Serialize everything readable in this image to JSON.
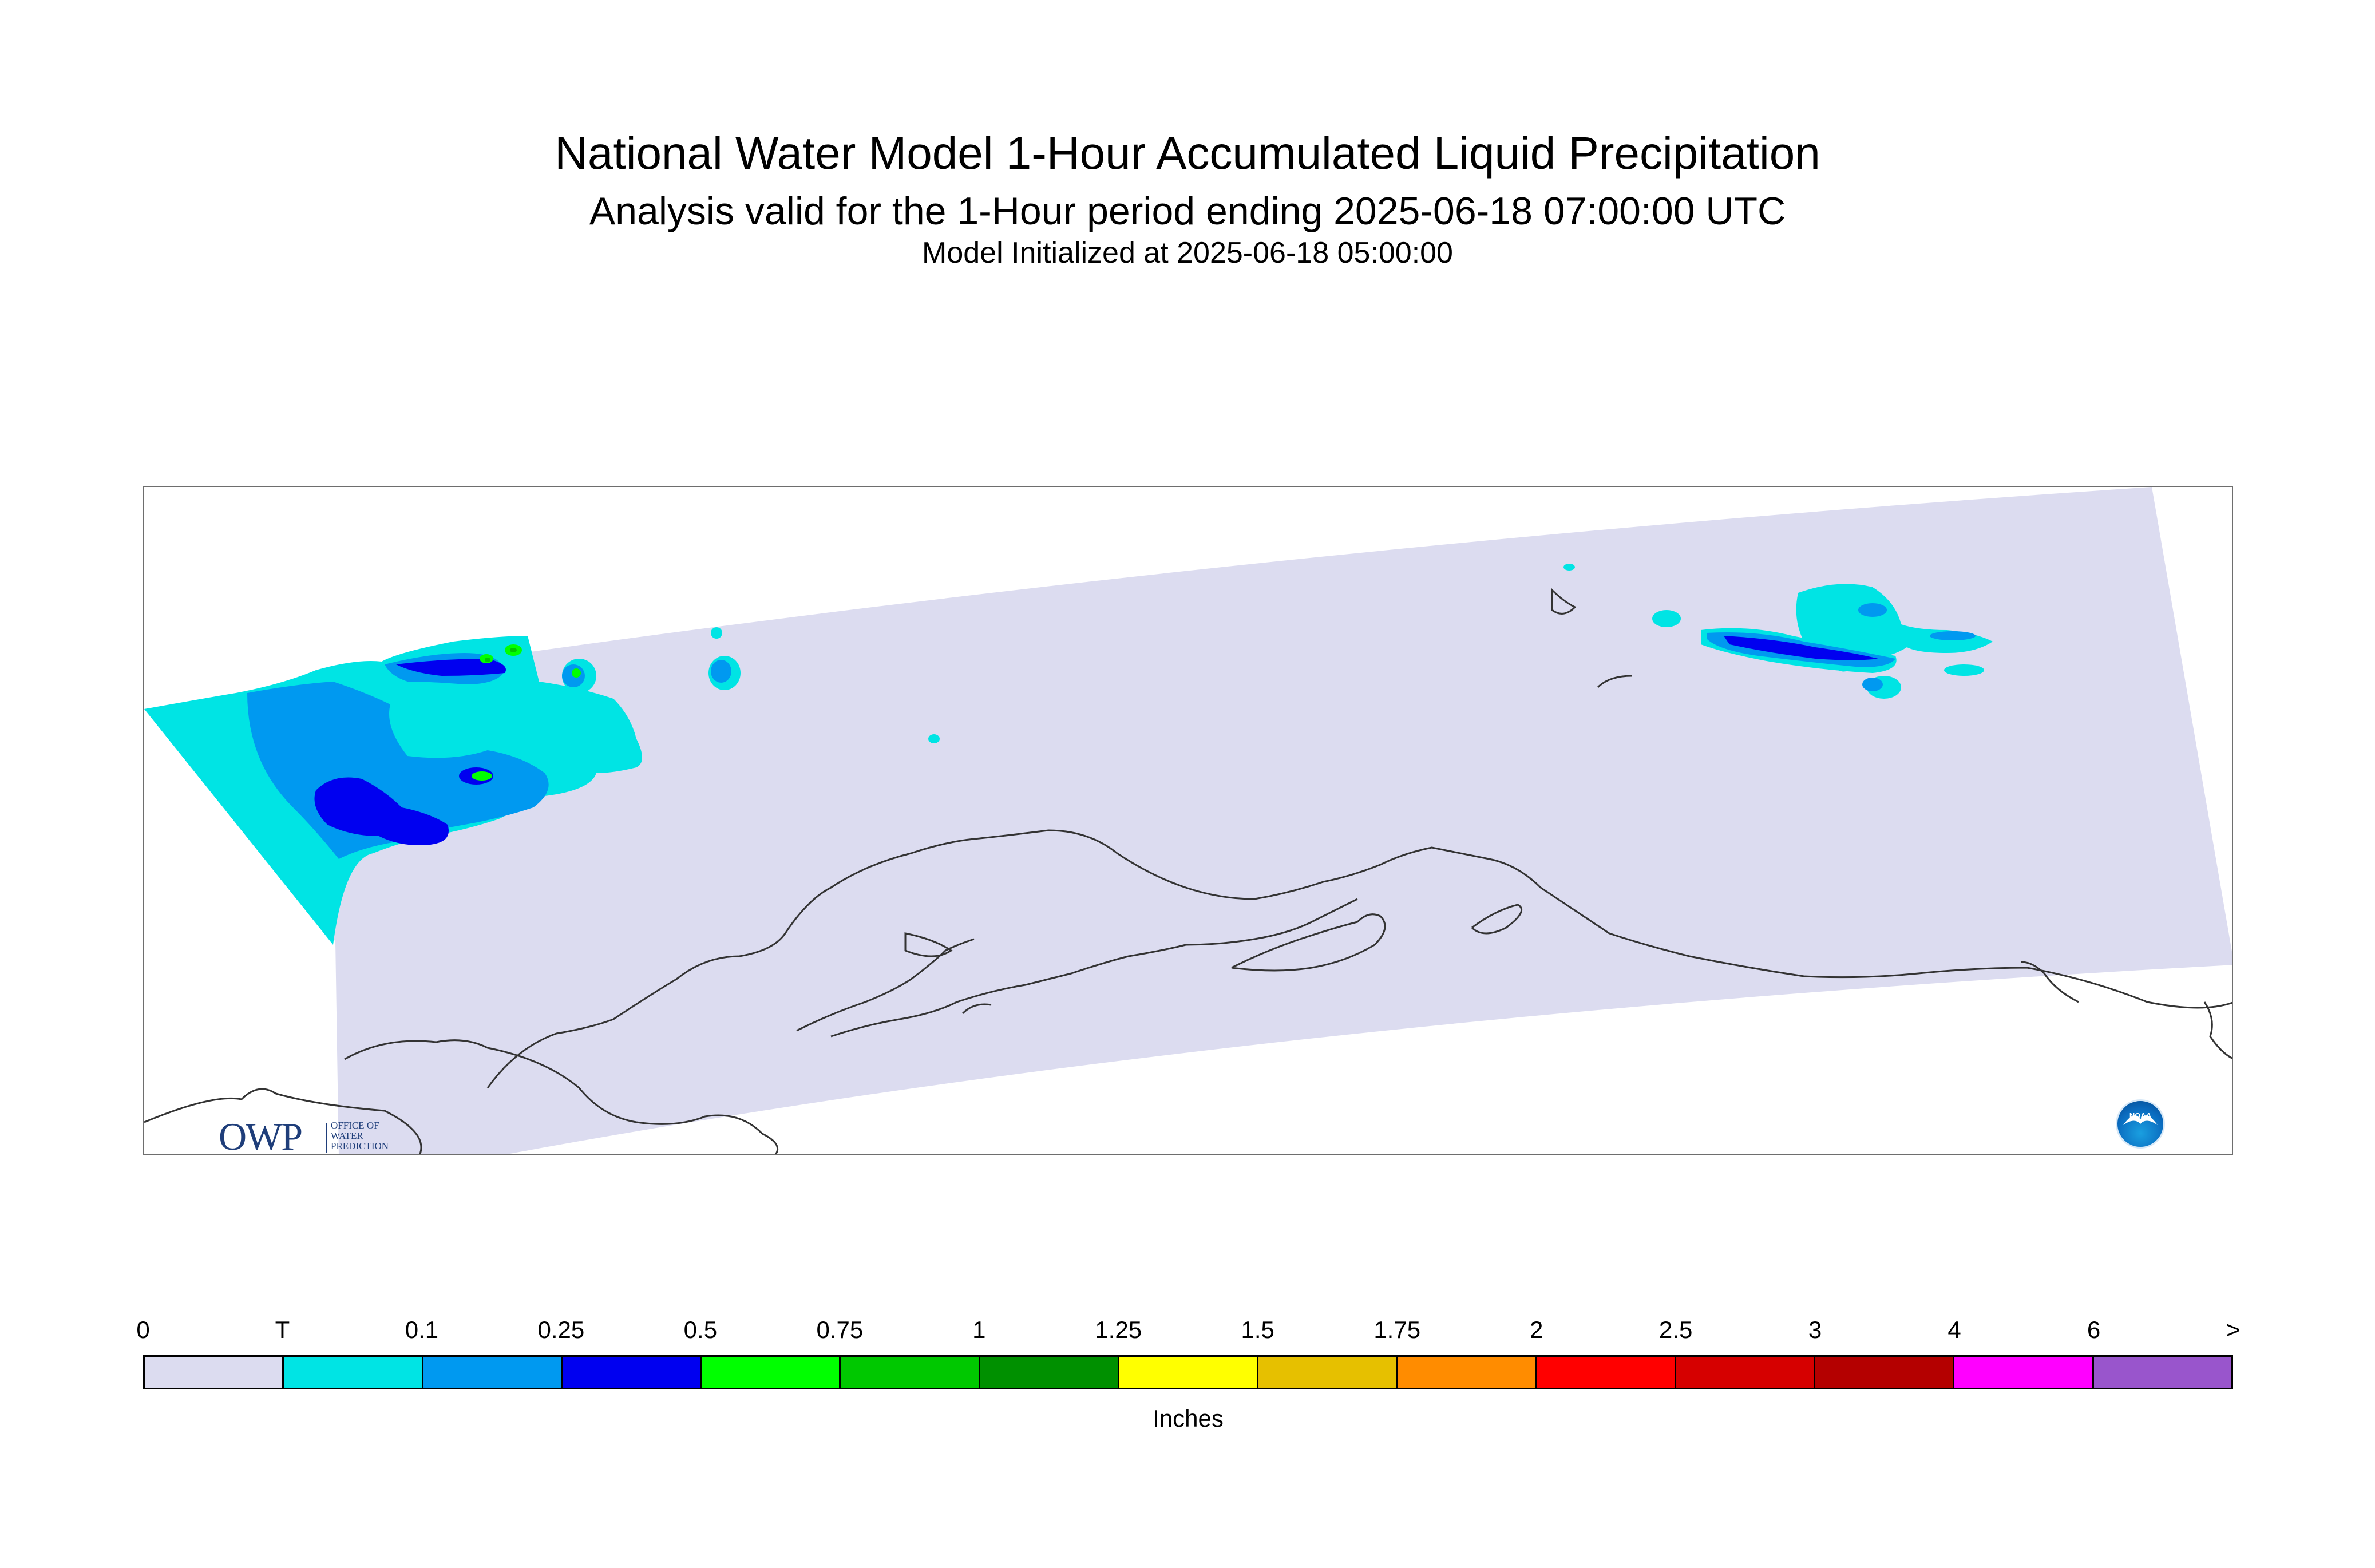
{
  "title": "National Water Model 1-Hour Accumulated Liquid Precipitation",
  "subtitle": "Analysis valid for the 1-Hour period ending 2025-06-18 07:00:00 UTC",
  "init_line": "Model Initialized at 2025-06-18 05:00:00",
  "map": {
    "region": "Alaska",
    "domain_fill": "#dcdcf0",
    "coastline_color": "#333333"
  },
  "logos": {
    "owp_main": "OWP",
    "owp_sub": "OFFICE OF\nWATER\nPREDICTION",
    "noaa": "NOAA"
  },
  "legend": {
    "units": "Inches",
    "ticks": [
      "0",
      "T",
      "0.1",
      "0.25",
      "0.5",
      "0.75",
      "1",
      "1.25",
      "1.5",
      "1.75",
      "2",
      "2.5",
      "3",
      "4",
      "6",
      ">"
    ],
    "colors": [
      "#dcdcf0",
      "#00e4e4",
      "#0099f0",
      "#0000f0",
      "#00ff00",
      "#00c800",
      "#009000",
      "#ffff00",
      "#e6c000",
      "#ff8c00",
      "#ff0000",
      "#d60000",
      "#b40000",
      "#ff00ff",
      "#9955cc"
    ]
  }
}
